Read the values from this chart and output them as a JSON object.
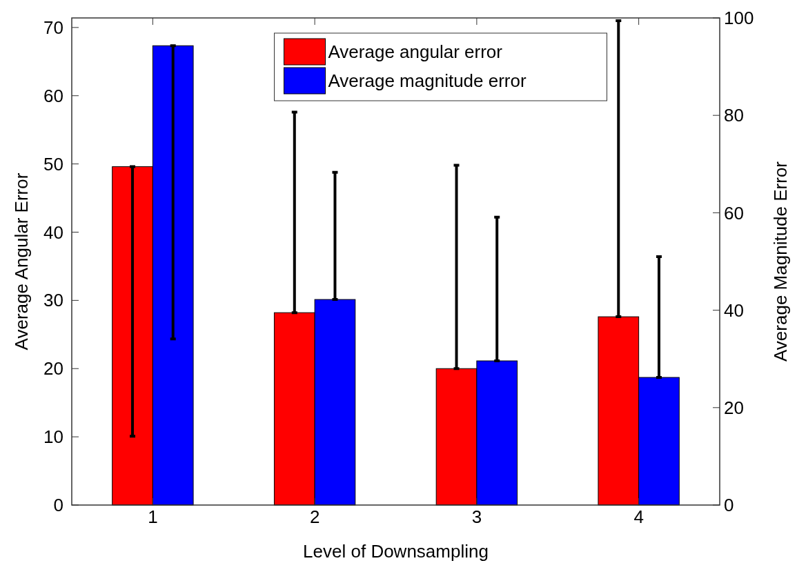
{
  "chart_data": {
    "type": "bar",
    "xlabel": "Level of Downsampling",
    "ylabel": "Average Angular Error",
    "y2label": "Average Magnitude Error",
    "categories": [
      "1",
      "2",
      "3",
      "4"
    ],
    "series": [
      {
        "name": "Average angular error",
        "color": "#ff0000",
        "values": [
          49.6,
          28.2,
          20.0,
          27.6
        ],
        "errors": [
          [
            10.1,
            49.6
          ],
          [
            28.2,
            57.6
          ],
          [
            20.0,
            49.8
          ],
          [
            27.6,
            71.0
          ]
        ]
      },
      {
        "name": "Average magnitude error",
        "color": "#0000ff",
        "axis": "y2",
        "values": [
          94.3,
          42.2,
          29.6,
          26.2
        ],
        "errors": [
          [
            34.1,
            94.3
          ],
          [
            42.2,
            68.3
          ],
          [
            29.6,
            59.1
          ],
          [
            26.2,
            51.0
          ]
        ]
      }
    ],
    "ylim": [
      0,
      71.4
    ],
    "yticks": [
      0,
      10,
      20,
      30,
      40,
      50,
      60,
      70
    ],
    "y2lim": [
      0,
      100
    ],
    "y2ticks": [
      0,
      20,
      40,
      60,
      80,
      100
    ],
    "legend": "top"
  }
}
